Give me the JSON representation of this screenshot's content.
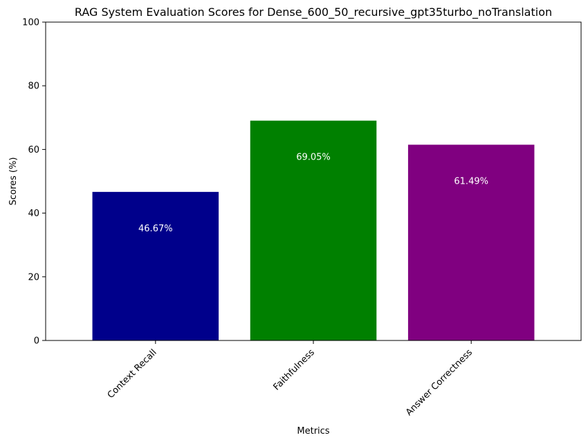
{
  "chart_data": {
    "type": "bar",
    "title": "RAG System Evaluation Scores for Dense_600_50_recursive_gpt35turbo_noTranslation",
    "xlabel": "Metrics",
    "ylabel": "Scores (%)",
    "ylim": [
      0,
      100
    ],
    "yticks": [
      "0",
      "20",
      "40",
      "60",
      "80",
      "100"
    ],
    "categories": [
      "Context Recall",
      "Faithfulness",
      "Answer Correctness"
    ],
    "values": [
      46.67,
      69.05,
      61.49
    ],
    "value_labels": [
      "46.67%",
      "69.05%",
      "61.49%"
    ],
    "colors": [
      "#00008b",
      "#008000",
      "#800080"
    ],
    "grid": false,
    "legend": "none"
  }
}
